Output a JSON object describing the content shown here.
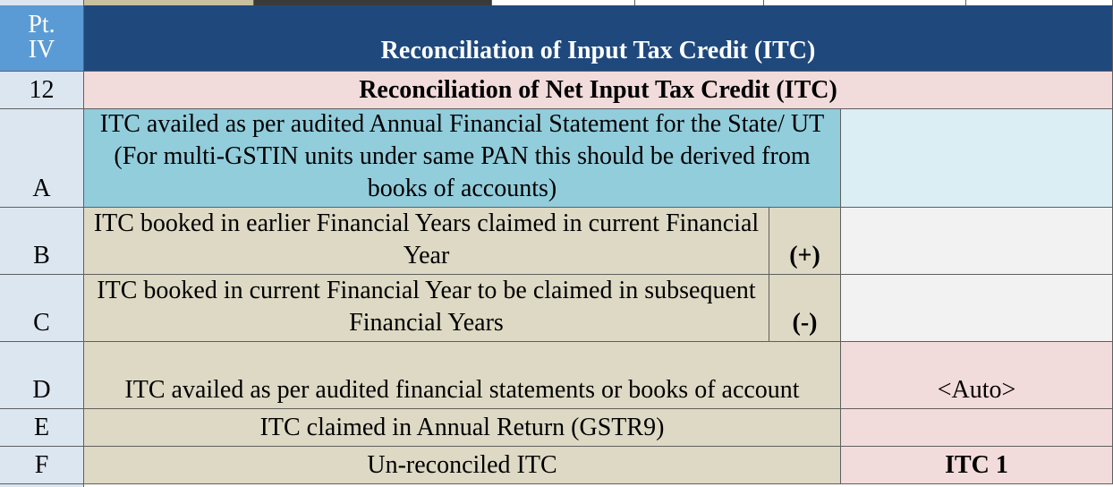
{
  "section": {
    "part_label_line1": "Pt.",
    "part_label_line2": "IV",
    "title": "Reconciliation of Input Tax Credit (ITC)"
  },
  "subsection": {
    "number": "12",
    "title": "Reconciliation of Net Input Tax Credit (ITC)"
  },
  "rows": [
    {
      "label": "A",
      "description": "ITC availed as per audited Annual Financial Statement for the State/ UT (For multi-GSTIN units under same PAN this should be derived from books of accounts)",
      "sign": "",
      "value": ""
    },
    {
      "label": "B",
      "description": "ITC booked in earlier Financial Years claimed in current Financial Year",
      "sign": "(+)",
      "value": ""
    },
    {
      "label": "C",
      "description": "ITC booked in current Financial Year to be claimed in subsequent Financial Years",
      "sign": "(-)",
      "value": ""
    },
    {
      "label": "D",
      "description": "ITC availed as per audited financial statements or books of account",
      "sign": "",
      "value": "<Auto>"
    },
    {
      "label": "E",
      "description": "ITC claimed in Annual Return (GSTR9)",
      "sign": "",
      "value": ""
    },
    {
      "label": "F",
      "description": "Un-reconciled ITC",
      "sign": "",
      "value": "ITC 1"
    }
  ],
  "colors": {
    "header_bg": "#1f497d",
    "part_bg": "#5b9bd5",
    "label_bg": "#dce6f1",
    "desc_bg": "#ddd9c4",
    "desc_highlight_bg": "#92cddc",
    "pink_bg": "#f2dcdb"
  }
}
